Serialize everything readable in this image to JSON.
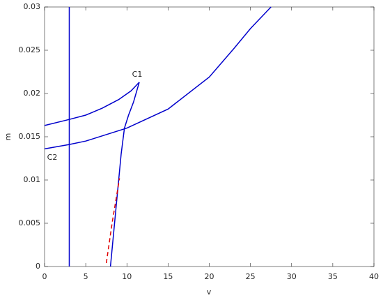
{
  "chart_data": {
    "type": "line",
    "x_label": "v",
    "y_label": "m",
    "xlim": [
      0,
      40
    ],
    "xticks": [
      0,
      5,
      10,
      15,
      20,
      25,
      30,
      35,
      40
    ],
    "ylim": [
      0,
      0.03
    ],
    "yticks": [
      0,
      0.005,
      0.01,
      0.015,
      0.02,
      0.025,
      0.03
    ],
    "series": [
      {
        "color": "#0000cc",
        "style": "solid",
        "x": [
          3,
          3
        ],
        "values": [
          0,
          0.03
        ]
      },
      {
        "color": "#0000cc",
        "style": "solid",
        "x": [
          0,
          3,
          5,
          7,
          9,
          10.5,
          11.5,
          10.8,
          10.2,
          9.7,
          9.3,
          9.0,
          8.6,
          8.3,
          8.0
        ],
        "values": [
          0.0163,
          0.017,
          0.0175,
          0.0183,
          0.0193,
          0.0203,
          0.0213,
          0.019,
          0.0175,
          0.016,
          0.013,
          0.01,
          0.006,
          0.003,
          0
        ]
      },
      {
        "color": "#0000cc",
        "style": "solid",
        "x": [
          0,
          3,
          5,
          10,
          15,
          20,
          23,
          25,
          27.5
        ],
        "values": [
          0.0136,
          0.0141,
          0.0145,
          0.016,
          0.0182,
          0.0219,
          0.0252,
          0.0275,
          0.03
        ]
      },
      {
        "color": "#e00000",
        "style": "dashed",
        "x": [
          7.5,
          8.2,
          9.1
        ],
        "values": [
          0.0004,
          0.005,
          0.0102
        ]
      }
    ],
    "annotations": [
      "C1",
      "C2"
    ]
  }
}
